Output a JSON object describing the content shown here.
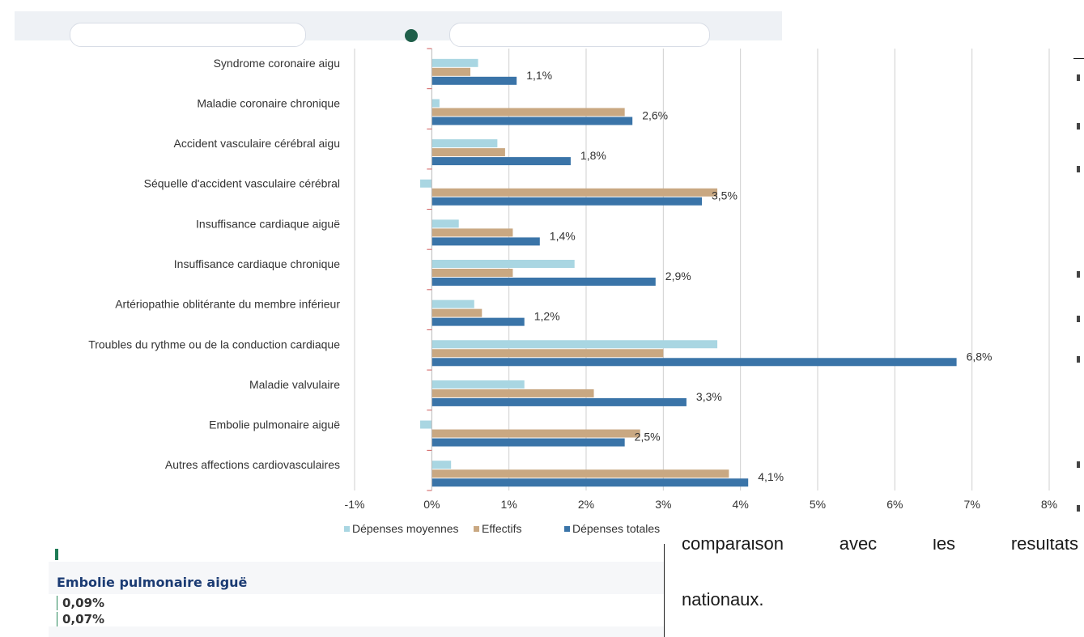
{
  "colors": {
    "avg_spend": "#a9d6e2",
    "headcount": "#c9a882",
    "total_spend": "#3a74a8",
    "grid": "#cfcfcf"
  },
  "panel": {
    "title": "Embolie pulmonaire aiguë",
    "values": [
      "0,09%",
      "0,07%"
    ]
  },
  "side_text": {
    "line1": [
      "comparaison",
      "avec",
      "les",
      "résultats"
    ],
    "line2": "nationaux."
  },
  "chart_data": {
    "type": "bar",
    "orientation": "horizontal",
    "title": "",
    "xlabel": "",
    "ylabel": "",
    "xlim": [
      -1,
      8
    ],
    "x_ticks": [
      -1,
      0,
      1,
      2,
      3,
      4,
      5,
      6,
      7,
      8
    ],
    "x_tick_labels": [
      "-1%",
      "0%",
      "1%",
      "2%",
      "3%",
      "4%",
      "5%",
      "6%",
      "7%",
      "8%"
    ],
    "grid": true,
    "legend_position": "bottom",
    "categories": [
      "Syndrome coronaire aigu",
      "Maladie coronaire chronique",
      "Accident vasculaire cérébral aigu",
      "Séquelle d'accident vasculaire cérébral",
      "Insuffisance cardiaque aiguë",
      "Insuffisance cardiaque chronique",
      "Artériopathie oblitérante du membre inférieur",
      "Troubles du rythme ou de la conduction cardiaque",
      "Maladie valvulaire",
      "Embolie pulmonaire aiguë",
      "Autres affections cardiovasculaires"
    ],
    "series": [
      {
        "name": "Dépenses moyennes",
        "color": "#a9d6e2",
        "values": [
          0.6,
          0.1,
          0.85,
          -0.15,
          0.35,
          1.85,
          0.55,
          3.7,
          1.2,
          -0.15,
          0.25
        ]
      },
      {
        "name": "Effectifs",
        "color": "#c9a882",
        "values": [
          0.5,
          2.5,
          0.95,
          3.7,
          1.05,
          1.05,
          0.65,
          3.0,
          2.1,
          2.7,
          3.85
        ]
      },
      {
        "name": "Dépenses totales",
        "color": "#3a74a8",
        "values": [
          1.1,
          2.6,
          1.8,
          3.5,
          1.4,
          2.9,
          1.2,
          6.8,
          3.3,
          2.5,
          4.1
        ],
        "data_labels": [
          "1,1%",
          "2,6%",
          "1,8%",
          "3,5%",
          "1,4%",
          "2,9%",
          "1,2%",
          "6,8%",
          "3,3%",
          "2,5%",
          "4,1%"
        ]
      }
    ]
  }
}
